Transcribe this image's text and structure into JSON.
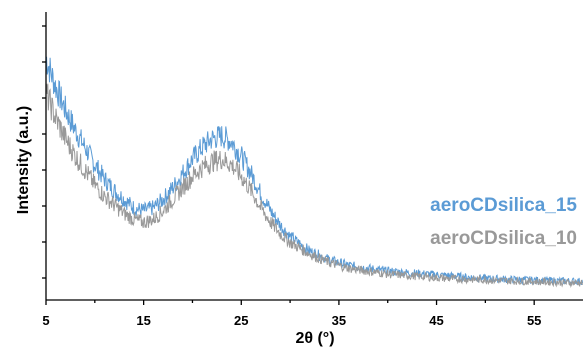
{
  "chart_data": {
    "type": "line",
    "xlabel": "2θ (°)",
    "ylabel": "Intensity (a.u.)",
    "xlim": [
      5,
      60
    ],
    "ylim": [
      0,
      100
    ],
    "xticks": [
      5,
      15,
      25,
      35,
      45,
      55
    ],
    "x_tick_labels": [
      "5",
      "15",
      "25",
      "35",
      "45",
      "55"
    ],
    "y_tick_count": 8,
    "y_tick_labels_shown": false,
    "legend_placement": "right",
    "grid": false,
    "series": [
      {
        "name": "aeroCDsilica_15",
        "color": "#5b9bd5",
        "x": [
          5,
          6,
          7,
          8,
          9,
          10,
          11,
          12,
          13,
          14,
          15,
          16,
          17,
          18,
          19,
          20,
          21,
          22,
          23,
          24,
          25,
          26,
          27,
          28,
          29,
          30,
          32,
          34,
          36,
          38,
          40,
          42,
          44,
          46,
          48,
          50,
          52,
          54,
          56,
          58,
          60
        ],
        "y": [
          84,
          74,
          66,
          59,
          53,
          47,
          42,
          38,
          35,
          32,
          31,
          32,
          35,
          39,
          44,
          49,
          53,
          56,
          57,
          55,
          50,
          44,
          37,
          31,
          26,
          22,
          17,
          14,
          12,
          11,
          10,
          9.5,
          9,
          8.5,
          8,
          7.5,
          7.2,
          7,
          6.8,
          6.6,
          6.5
        ]
      },
      {
        "name": "aeroCDsilica_10",
        "color": "#999999",
        "x": [
          5,
          6,
          7,
          8,
          9,
          10,
          11,
          12,
          13,
          14,
          15,
          16,
          17,
          18,
          19,
          20,
          21,
          22,
          23,
          24,
          25,
          26,
          27,
          28,
          29,
          30,
          32,
          34,
          36,
          38,
          40,
          42,
          44,
          46,
          48,
          50,
          52,
          54,
          56,
          58,
          60
        ],
        "y": [
          72,
          63,
          56,
          50,
          45,
          40,
          36,
          33,
          30,
          28,
          27,
          28,
          31,
          35,
          39,
          43,
          46,
          48,
          49,
          47,
          43,
          38,
          32,
          27,
          23,
          20,
          16,
          13,
          11,
          10,
          9,
          8.5,
          8,
          7.5,
          7.2,
          7,
          6.7,
          6.5,
          6.3,
          6.1,
          6
        ]
      }
    ]
  }
}
